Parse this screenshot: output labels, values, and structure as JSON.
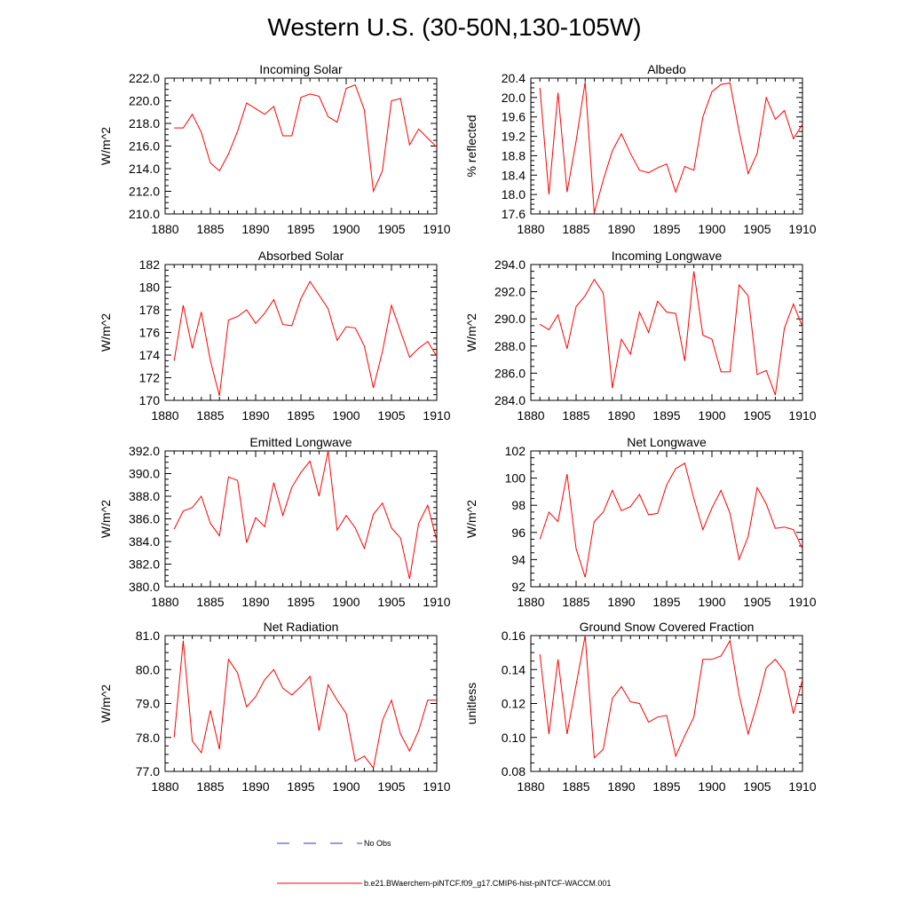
{
  "figure_title": "Western U.S. (30-50N,130-105W)",
  "legend": {
    "no_obs_label": "No Obs",
    "no_obs_color": "#3333cc",
    "model_label": "b.e21.BWaerchem-piNTCF.f09_g17.CMIP6-hist-piNTCF-WACCM.001",
    "model_color": "#ff0000"
  },
  "chart_data": [
    {
      "type": "line",
      "title": "Incoming Solar",
      "ylabel": "W/m^2",
      "xlim": [
        1880,
        1910
      ],
      "xticks": [
        1880,
        1885,
        1890,
        1895,
        1900,
        1905,
        1910
      ],
      "ylim": [
        210.0,
        222.0
      ],
      "yticks": [
        "210.0",
        "212.0",
        "214.0",
        "216.0",
        "218.0",
        "220.0",
        "222.0"
      ],
      "series": [
        {
          "color": "#ff0000",
          "x": [
            1881,
            1882,
            1883,
            1884,
            1885,
            1886,
            1887,
            1888,
            1889,
            1890,
            1891,
            1892,
            1893,
            1894,
            1895,
            1896,
            1897,
            1898,
            1899,
            1900,
            1901,
            1902,
            1903,
            1904,
            1905,
            1906,
            1907,
            1908,
            1909,
            1910
          ],
          "values": [
            217.6,
            217.6,
            218.8,
            217.2,
            214.5,
            213.8,
            215.3,
            217.3,
            219.8,
            219.3,
            218.8,
            219.5,
            216.9,
            216.9,
            220.3,
            220.6,
            220.4,
            218.6,
            218.1,
            221.1,
            221.4,
            219.2,
            212.0,
            213.8,
            220.0,
            220.2,
            216.1,
            217.5,
            216.7,
            215.9
          ]
        }
      ]
    },
    {
      "type": "line",
      "title": "Albedo",
      "ylabel": "% reflected",
      "xlim": [
        1880,
        1910
      ],
      "xticks": [
        1880,
        1885,
        1890,
        1895,
        1900,
        1905,
        1910
      ],
      "ylim": [
        17.6,
        20.4
      ],
      "yticks": [
        "17.6",
        "18.0",
        "18.4",
        "18.8",
        "19.2",
        "19.6",
        "20.0",
        "20.4"
      ],
      "series": [
        {
          "color": "#ff0000",
          "x": [
            1881,
            1882,
            1883,
            1884,
            1885,
            1886,
            1887,
            1888,
            1889,
            1890,
            1891,
            1892,
            1893,
            1894,
            1895,
            1896,
            1897,
            1898,
            1899,
            1900,
            1901,
            1902,
            1903,
            1904,
            1905,
            1906,
            1907,
            1908,
            1909,
            1910
          ],
          "values": [
            20.2,
            18.0,
            20.1,
            18.05,
            19.1,
            20.32,
            17.62,
            18.3,
            18.9,
            19.25,
            18.85,
            18.5,
            18.45,
            18.55,
            18.63,
            18.05,
            18.58,
            18.5,
            19.6,
            20.12,
            20.27,
            20.3,
            19.3,
            18.43,
            18.85,
            20.0,
            19.55,
            19.73,
            19.15,
            19.45
          ]
        }
      ]
    },
    {
      "type": "line",
      "title": "Absorbed Solar",
      "ylabel": "W/m^2",
      "xlim": [
        1880,
        1910
      ],
      "xticks": [
        1880,
        1885,
        1890,
        1895,
        1900,
        1905,
        1910
      ],
      "ylim": [
        170,
        182
      ],
      "yticks": [
        "170",
        "172",
        "174",
        "176",
        "178",
        "180",
        "182"
      ],
      "series": [
        {
          "color": "#ff0000",
          "x": [
            1881,
            1882,
            1883,
            1884,
            1885,
            1886,
            1887,
            1888,
            1889,
            1890,
            1891,
            1892,
            1893,
            1894,
            1895,
            1896,
            1897,
            1898,
            1899,
            1900,
            1901,
            1902,
            1903,
            1904,
            1905,
            1906,
            1907,
            1908,
            1909,
            1910
          ],
          "values": [
            173.5,
            178.4,
            174.6,
            177.8,
            173.5,
            170.4,
            177.1,
            177.4,
            178.0,
            176.8,
            177.7,
            178.9,
            176.7,
            176.6,
            179.0,
            180.5,
            179.3,
            178.1,
            175.3,
            176.5,
            176.4,
            174.8,
            171.1,
            174.3,
            178.4,
            176.1,
            173.8,
            174.6,
            175.2,
            173.9
          ]
        }
      ]
    },
    {
      "type": "line",
      "title": "Incoming Longwave",
      "ylabel": "W/m^2",
      "xlim": [
        1880,
        1910
      ],
      "xticks": [
        1880,
        1885,
        1890,
        1895,
        1900,
        1905,
        1910
      ],
      "ylim": [
        284.0,
        294.0
      ],
      "yticks": [
        "284.0",
        "286.0",
        "288.0",
        "290.0",
        "292.0",
        "294.0"
      ],
      "series": [
        {
          "color": "#ff0000",
          "x": [
            1881,
            1882,
            1883,
            1884,
            1885,
            1886,
            1887,
            1888,
            1889,
            1890,
            1891,
            1892,
            1893,
            1894,
            1895,
            1896,
            1897,
            1898,
            1899,
            1900,
            1901,
            1902,
            1903,
            1904,
            1905,
            1906,
            1907,
            1908,
            1909,
            1910
          ],
          "values": [
            289.6,
            289.2,
            290.3,
            287.8,
            290.9,
            291.7,
            292.9,
            291.9,
            284.9,
            288.5,
            287.4,
            290.5,
            289.0,
            291.3,
            290.5,
            290.4,
            286.9,
            293.5,
            288.8,
            288.5,
            286.1,
            286.1,
            292.5,
            291.7,
            285.9,
            286.2,
            284.4,
            289.3,
            291.1,
            289.4
          ]
        }
      ]
    },
    {
      "type": "line",
      "title": "Emitted Longwave",
      "ylabel": "W/m^2",
      "xlim": [
        1880,
        1910
      ],
      "xticks": [
        1880,
        1885,
        1890,
        1895,
        1900,
        1905,
        1910
      ],
      "ylim": [
        380.0,
        392.0
      ],
      "yticks": [
        "380.0",
        "382.0",
        "384.0",
        "386.0",
        "388.0",
        "390.0",
        "392.0"
      ],
      "series": [
        {
          "color": "#ff0000",
          "x": [
            1881,
            1882,
            1883,
            1884,
            1885,
            1886,
            1887,
            1888,
            1889,
            1890,
            1891,
            1892,
            1893,
            1894,
            1895,
            1896,
            1897,
            1898,
            1899,
            1900,
            1901,
            1902,
            1903,
            1904,
            1905,
            1906,
            1907,
            1908,
            1909,
            1910
          ],
          "values": [
            385.1,
            386.7,
            387.0,
            388.0,
            385.6,
            384.5,
            389.7,
            389.4,
            383.9,
            386.1,
            385.3,
            389.2,
            386.3,
            388.8,
            390.1,
            391.1,
            388.0,
            392.0,
            385.0,
            386.3,
            385.2,
            383.4,
            386.4,
            387.4,
            385.2,
            384.3,
            380.7,
            385.6,
            387.2,
            384.1
          ]
        }
      ]
    },
    {
      "type": "line",
      "title": "Net Longwave",
      "ylabel": "W/m^2",
      "xlim": [
        1880,
        1910
      ],
      "xticks": [
        1880,
        1885,
        1890,
        1895,
        1900,
        1905,
        1910
      ],
      "ylim": [
        92,
        102
      ],
      "yticks": [
        "92",
        "94",
        "96",
        "98",
        "100",
        "102"
      ],
      "series": [
        {
          "color": "#ff0000",
          "x": [
            1881,
            1882,
            1883,
            1884,
            1885,
            1886,
            1887,
            1888,
            1889,
            1890,
            1891,
            1892,
            1893,
            1894,
            1895,
            1896,
            1897,
            1898,
            1899,
            1900,
            1901,
            1902,
            1903,
            1904,
            1905,
            1906,
            1907,
            1908,
            1909,
            1910
          ],
          "values": [
            95.5,
            97.5,
            96.8,
            100.3,
            94.8,
            92.7,
            96.8,
            97.5,
            99.1,
            97.6,
            97.9,
            98.8,
            97.3,
            97.4,
            99.5,
            100.7,
            101.1,
            98.5,
            96.2,
            97.8,
            99.1,
            97.4,
            94.0,
            95.7,
            99.3,
            98.1,
            96.3,
            96.4,
            96.2,
            94.8
          ]
        }
      ]
    },
    {
      "type": "line",
      "title": "Net Radiation",
      "ylabel": "W/m^2",
      "xlim": [
        1880,
        1910
      ],
      "xticks": [
        1880,
        1885,
        1890,
        1895,
        1900,
        1905,
        1910
      ],
      "ylim": [
        77.0,
        81.0
      ],
      "yticks": [
        "77.0",
        "78.0",
        "79.0",
        "80.0",
        "81.0"
      ],
      "series": [
        {
          "color": "#ff0000",
          "x": [
            1881,
            1882,
            1883,
            1884,
            1885,
            1886,
            1887,
            1888,
            1889,
            1890,
            1891,
            1892,
            1893,
            1894,
            1895,
            1896,
            1897,
            1898,
            1899,
            1900,
            1901,
            1902,
            1903,
            1904,
            1905,
            1906,
            1907,
            1908,
            1909,
            1910
          ],
          "values": [
            78.0,
            80.85,
            77.9,
            77.55,
            78.8,
            77.65,
            80.3,
            79.9,
            78.9,
            79.2,
            79.7,
            80.0,
            79.45,
            79.25,
            79.5,
            79.8,
            78.2,
            79.55,
            79.1,
            78.7,
            77.3,
            77.45,
            77.1,
            78.5,
            79.1,
            78.1,
            77.6,
            78.2,
            79.1,
            79.1
          ]
        }
      ]
    },
    {
      "type": "line",
      "title": "Ground Snow Covered Fraction",
      "ylabel": "unitless",
      "xlim": [
        1880,
        1910
      ],
      "xticks": [
        1880,
        1885,
        1890,
        1895,
        1900,
        1905,
        1910
      ],
      "ylim": [
        0.08,
        0.16
      ],
      "yticks": [
        "0.08",
        "0.10",
        "0.12",
        "0.14",
        "0.16"
      ],
      "series": [
        {
          "color": "#ff0000",
          "x": [
            1881,
            1882,
            1883,
            1884,
            1885,
            1886,
            1887,
            1888,
            1889,
            1890,
            1891,
            1892,
            1893,
            1894,
            1895,
            1896,
            1897,
            1898,
            1899,
            1900,
            1901,
            1902,
            1903,
            1904,
            1905,
            1906,
            1907,
            1908,
            1909,
            1910
          ],
          "values": [
            0.149,
            0.102,
            0.146,
            0.102,
            0.131,
            0.16,
            0.088,
            0.093,
            0.123,
            0.13,
            0.121,
            0.12,
            0.109,
            0.112,
            0.113,
            0.089,
            0.101,
            0.112,
            0.146,
            0.146,
            0.148,
            0.157,
            0.125,
            0.102,
            0.12,
            0.141,
            0.146,
            0.139,
            0.114,
            0.134
          ]
        }
      ]
    }
  ]
}
